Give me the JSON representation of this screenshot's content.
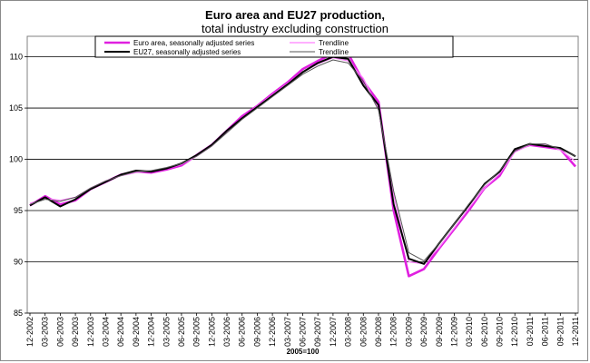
{
  "chart_data": {
    "type": "line",
    "title": "Euro area and EU27 production,",
    "subtitle": "total industry excluding construction",
    "xlabel": "2005=100",
    "ylabel": "",
    "ylim": [
      85,
      112
    ],
    "yticks": [
      85,
      90,
      95,
      100,
      105,
      110
    ],
    "grid": true,
    "legend_position": "top",
    "x_tick_labels": [
      "12-2002",
      "03-2003",
      "06-2003",
      "09-2003",
      "12-2003",
      "03-2004",
      "06-2004",
      "09-2004",
      "12-2004",
      "03-2005",
      "06-2005",
      "09-2005",
      "12-2005",
      "03-2006",
      "06-2006",
      "09-2006",
      "12-2006",
      "03-2007",
      "06-2007",
      "09-2007",
      "12-2007",
      "03-2008",
      "06-2008",
      "09-2008",
      "12-2008",
      "03-2009",
      "06-2009",
      "09-2009",
      "12-2009",
      "03-2010",
      "06-2010",
      "09-2010",
      "12-2010",
      "03-2011",
      "06-2011",
      "09-2011",
      "12-2011"
    ],
    "x": [
      "12-2002",
      "03-2003",
      "06-2003",
      "09-2003",
      "12-2003",
      "03-2004",
      "06-2004",
      "09-2004",
      "12-2004",
      "03-2005",
      "06-2005",
      "09-2005",
      "12-2005",
      "03-2006",
      "06-2006",
      "09-2006",
      "12-2006",
      "03-2007",
      "06-2007",
      "09-2007",
      "12-2007",
      "03-2008",
      "06-2008",
      "09-2008",
      "12-2008",
      "03-2009",
      "06-2009",
      "09-2009",
      "12-2009",
      "03-2010",
      "06-2010",
      "09-2010",
      "12-2010",
      "03-2011",
      "06-2011",
      "09-2011",
      "12-2011"
    ],
    "series": [
      {
        "name": "Euro area, seasonally adjusted series",
        "color": "#e020e0",
        "width": 2.6,
        "values": [
          95.5,
          96.4,
          95.6,
          96.0,
          97.1,
          97.8,
          98.5,
          98.8,
          98.7,
          99.0,
          99.4,
          100.4,
          101.4,
          102.8,
          104.2,
          105.2,
          106.4,
          107.5,
          108.8,
          109.6,
          110.3,
          110.3,
          107.6,
          105.6,
          95.0,
          88.6,
          89.3,
          91.3,
          93.2,
          95.1,
          97.2,
          98.4,
          100.9,
          101.4,
          101.2,
          101.0,
          99.3
        ]
      },
      {
        "name": "Trendline",
        "color": "#ff80ff",
        "width": 1.2,
        "values": [
          95.7,
          96.2,
          96.0,
          96.3,
          97.2,
          97.9,
          98.4,
          98.7,
          98.8,
          99.1,
          99.5,
          100.3,
          101.3,
          102.7,
          104.0,
          105.2,
          106.3,
          107.4,
          108.5,
          109.3,
          109.9,
          109.6,
          107.9,
          104.9,
          96.5,
          90.0,
          89.8,
          91.4,
          93.3,
          95.3,
          97.2,
          98.6,
          100.7,
          101.4,
          101.5,
          100.9,
          99.8
        ]
      },
      {
        "name": "EU27, seasonally adjusted series",
        "color": "#000000",
        "width": 2.0,
        "values": [
          95.5,
          96.3,
          95.4,
          96.1,
          97.1,
          97.8,
          98.5,
          98.9,
          98.8,
          99.1,
          99.6,
          100.4,
          101.4,
          102.8,
          104.0,
          105.1,
          106.2,
          107.3,
          108.5,
          109.4,
          110.0,
          109.8,
          107.2,
          105.3,
          95.6,
          90.3,
          89.8,
          91.8,
          93.7,
          95.6,
          97.6,
          98.8,
          101.0,
          101.5,
          101.3,
          101.1,
          100.3
        ]
      },
      {
        "name": "Trendline",
        "color": "#555555",
        "width": 1.0,
        "values": [
          95.6,
          96.1,
          95.9,
          96.3,
          97.2,
          97.9,
          98.4,
          98.8,
          98.9,
          99.2,
          99.6,
          100.3,
          101.3,
          102.6,
          103.9,
          105.0,
          106.1,
          107.2,
          108.3,
          109.1,
          109.7,
          109.4,
          107.6,
          104.8,
          96.9,
          90.9,
          90.1,
          91.8,
          93.7,
          95.7,
          97.5,
          98.9,
          100.8,
          101.5,
          101.5,
          101.0,
          100.3
        ]
      }
    ]
  }
}
